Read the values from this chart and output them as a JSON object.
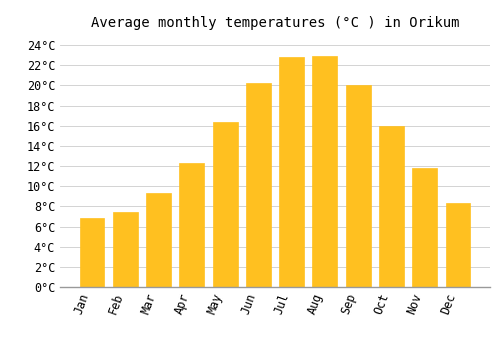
{
  "title": "Average monthly temperatures (°C ) in Orikum",
  "months": [
    "Jan",
    "Feb",
    "Mar",
    "Apr",
    "May",
    "Jun",
    "Jul",
    "Aug",
    "Sep",
    "Oct",
    "Nov",
    "Dec"
  ],
  "temperatures": [
    6.8,
    7.4,
    9.3,
    12.3,
    16.4,
    20.2,
    22.8,
    22.9,
    20.0,
    16.0,
    11.8,
    8.3
  ],
  "bar_color_top": "#FFC020",
  "bar_color_bottom": "#F5A800",
  "bar_edge_color": "#E8A010",
  "background_color": "#FFFFFF",
  "grid_color": "#CCCCCC",
  "ylim": [
    0,
    25
  ],
  "yticks": [
    0,
    2,
    4,
    6,
    8,
    10,
    12,
    14,
    16,
    18,
    20,
    22,
    24
  ],
  "title_fontsize": 10,
  "tick_fontsize": 8.5
}
